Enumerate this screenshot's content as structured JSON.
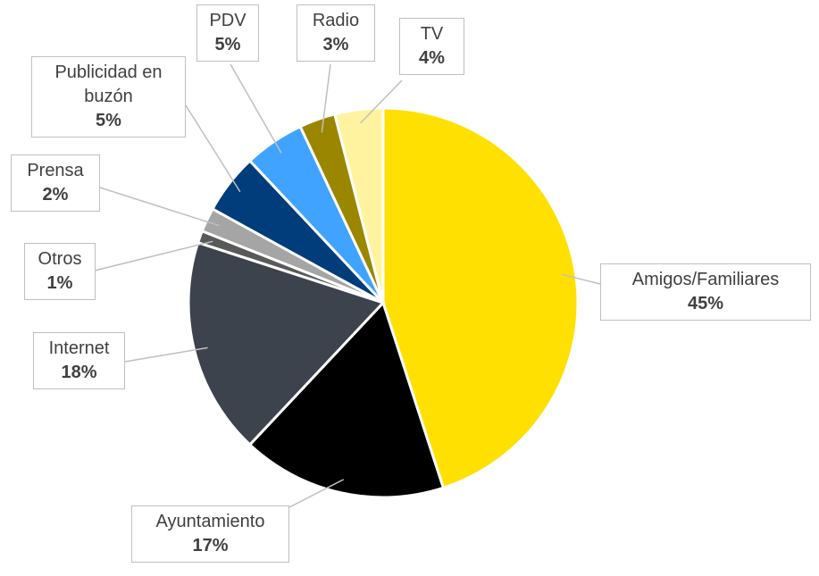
{
  "chart_data": {
    "type": "pie",
    "categories": [
      "Amigos/Familiares",
      "Ayuntamiento",
      "Internet",
      "Otros",
      "Prensa",
      "Publicidad en buzón",
      "PDV",
      "Radio",
      "TV"
    ],
    "values": [
      45,
      17,
      18,
      1,
      2,
      5,
      5,
      3,
      4
    ],
    "value_labels": [
      "45%",
      "17%",
      "18%",
      "1%",
      "2%",
      "5%",
      "5%",
      "3%",
      "4%"
    ],
    "colors": [
      "#ffe000",
      "#000000",
      "#3d434c",
      "#595959",
      "#a5a5a5",
      "#003d7a",
      "#3fa3ff",
      "#9b8600",
      "#fff3a0"
    ]
  }
}
